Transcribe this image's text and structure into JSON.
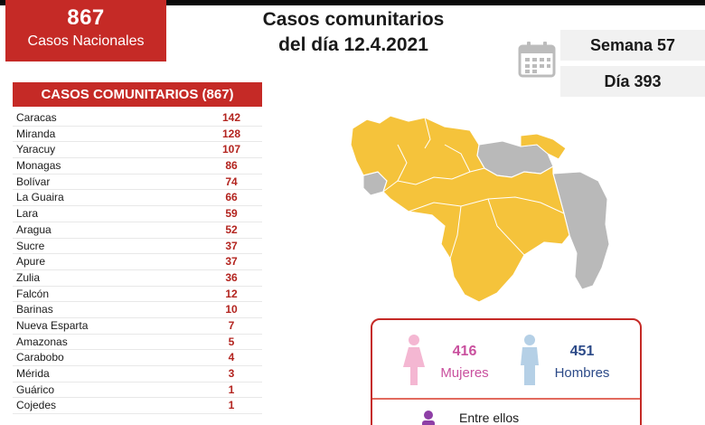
{
  "header": {
    "national_count": "867",
    "national_label": "Casos Nacionales",
    "title_line1": "Casos comunitarios",
    "title_line2": "del día 12.4.2021",
    "week": "Semana 57",
    "day": "Día 393"
  },
  "table": {
    "title": "CASOS COMUNITARIOS (867)",
    "rows": [
      {
        "state": "Caracas",
        "value": "142"
      },
      {
        "state": "Miranda",
        "value": "128"
      },
      {
        "state": "Yaracuy",
        "value": "107"
      },
      {
        "state": "Monagas",
        "value": "86"
      },
      {
        "state": "Bolívar",
        "value": "74"
      },
      {
        "state": "La Guaira",
        "value": "66"
      },
      {
        "state": "Lara",
        "value": "59"
      },
      {
        "state": "Aragua",
        "value": "52"
      },
      {
        "state": "Sucre",
        "value": "37"
      },
      {
        "state": "Apure",
        "value": "37"
      },
      {
        "state": "Zulia",
        "value": "36"
      },
      {
        "state": "Falcón",
        "value": "12"
      },
      {
        "state": "Barinas",
        "value": "10"
      },
      {
        "state": "Nueva Esparta",
        "value": "7"
      },
      {
        "state": "Amazonas",
        "value": "5"
      },
      {
        "state": "Carabobo",
        "value": "4"
      },
      {
        "state": "Mérida",
        "value": "3"
      },
      {
        "state": "Guárico",
        "value": "1"
      },
      {
        "state": "Cojedes",
        "value": "1"
      }
    ]
  },
  "gender": {
    "female_count": "416",
    "female_label": "Mujeres",
    "male_count": "451",
    "male_label": "Hombres",
    "among_text": "Entre ellos"
  },
  "colors": {
    "accent_red": "#c52a26",
    "map_yellow": "#f5c33b",
    "map_gray": "#b9b9b9",
    "female_pink": "#c9509e",
    "male_blue": "#2c4a88"
  },
  "icons": {
    "calendar": "calendar-icon",
    "female": "female-person-icon",
    "male": "male-person-icon"
  }
}
